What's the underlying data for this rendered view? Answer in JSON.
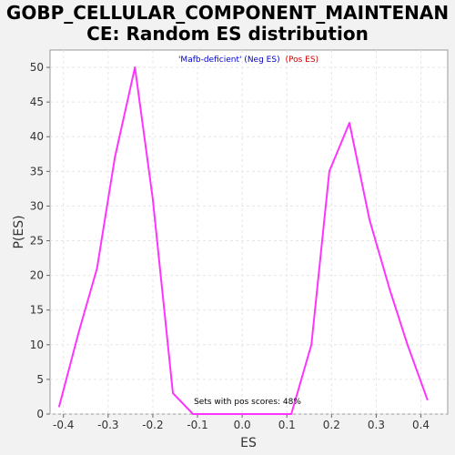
{
  "chart_data": {
    "type": "line",
    "title_lines": [
      "GOBP_CELLULAR_COMPONENT_MAINTENAN",
      "CE: Random ES distribution"
    ],
    "xlabel": "ES",
    "ylabel": "P(ES)",
    "xlim": [
      -0.43,
      0.46
    ],
    "ylim": [
      0,
      52.5
    ],
    "x_ticks": [
      -0.4,
      -0.3,
      -0.2,
      -0.1,
      0.0,
      0.1,
      0.2,
      0.3,
      0.4
    ],
    "x_tick_labels": [
      "-0.4",
      "-0.3",
      "-0.2",
      "-0.1",
      "0.0",
      "0.1",
      "0.2",
      "0.3",
      "0.4"
    ],
    "y_ticks": [
      0,
      5,
      10,
      15,
      20,
      25,
      30,
      35,
      40,
      45,
      50
    ],
    "y_tick_labels": [
      "0",
      "5",
      "10",
      "15",
      "20",
      "25",
      "30",
      "35",
      "40",
      "45",
      "50"
    ],
    "grid": true,
    "legend": {
      "placement": "top-center",
      "neg_label": "'Mafb-deficient' (Neg ES)",
      "neg_color": "#0000cc",
      "pos_label": "(Pos ES)",
      "pos_color": "#cc0000"
    },
    "annotation": "Sets with pos scores: 48%",
    "series": [
      {
        "color": "#ff33ff",
        "points": [
          [
            -0.41,
            1
          ],
          [
            -0.365,
            12
          ],
          [
            -0.325,
            21
          ],
          [
            -0.285,
            37
          ],
          [
            -0.24,
            50
          ],
          [
            -0.2,
            31
          ],
          [
            -0.155,
            3
          ],
          [
            -0.11,
            0
          ],
          [
            -0.07,
            0
          ],
          [
            -0.025,
            0
          ],
          [
            0.02,
            0
          ],
          [
            0.065,
            0
          ],
          [
            0.11,
            0
          ],
          [
            0.155,
            10
          ],
          [
            0.195,
            35
          ],
          [
            0.24,
            42
          ],
          [
            0.285,
            28
          ],
          [
            0.33,
            18
          ],
          [
            0.37,
            10
          ],
          [
            0.415,
            2
          ]
        ]
      }
    ]
  }
}
